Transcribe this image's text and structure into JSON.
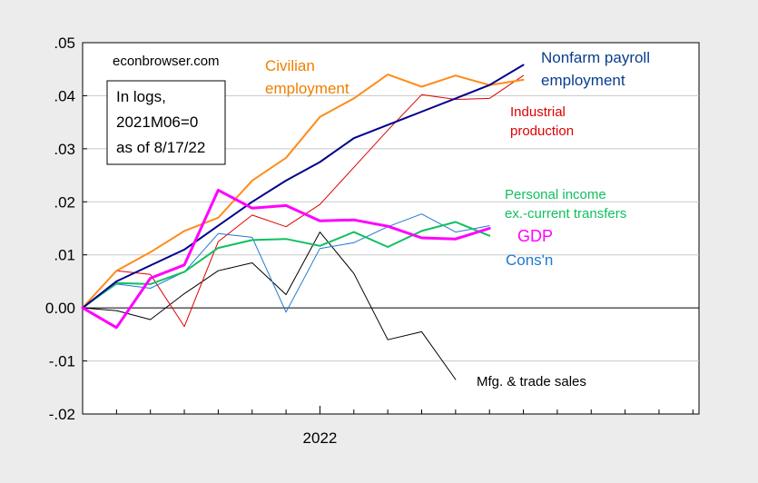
{
  "chart_data": {
    "type": "line",
    "title": "",
    "xlabel": "",
    "ylabel": "",
    "ylim": [
      -0.02,
      0.05
    ],
    "y_ticks": [
      ".05",
      ".04",
      ".03",
      ".02",
      ".01",
      "0.00",
      "-.01",
      "-.02"
    ],
    "x_tick_labels": [
      "2022"
    ],
    "x_months": [
      "2021-06",
      "2021-07",
      "2021-08",
      "2021-09",
      "2021-10",
      "2021-11",
      "2021-12",
      "2022-01",
      "2022-02",
      "2022-03",
      "2022-04",
      "2022-05",
      "2022-06",
      "2022-07",
      "2022-08",
      "2022-09",
      "2022-10",
      "2022-11",
      "2022-12"
    ],
    "grid": true,
    "annotations": {
      "source": "econbrowser.com",
      "note_lines": [
        "In logs,",
        "2021M06=0",
        "as of 8/17/22"
      ]
    },
    "series": [
      {
        "name": "Nonfarm payroll employment",
        "label_lines": [
          "Nonfarm payroll",
          "employment"
        ],
        "color": "#00008b",
        "label_color": "#0a3d8f",
        "width": 2,
        "values": [
          0.0,
          0.005,
          0.008,
          0.011,
          0.0155,
          0.02,
          0.024,
          0.0275,
          0.032,
          0.0345,
          0.037,
          0.0395,
          0.042,
          0.0458
        ]
      },
      {
        "name": "Civilian employment",
        "label_lines": [
          "Civilian",
          "employment"
        ],
        "color": "#ff8c1a",
        "label_color": "#f07f00",
        "width": 2,
        "values": [
          0.0,
          0.007,
          0.0105,
          0.0145,
          0.017,
          0.024,
          0.0283,
          0.036,
          0.0395,
          0.044,
          0.0417,
          0.0438,
          0.042,
          0.043
        ]
      },
      {
        "name": "Industrial production",
        "label_lines": [
          "Industrial",
          "production"
        ],
        "color": "#e00000",
        "label_color": "#e00000",
        "width": 1,
        "values": [
          0.0,
          0.007,
          0.0063,
          -0.0035,
          0.0125,
          0.0175,
          0.0153,
          0.0195,
          0.0265,
          0.0335,
          0.0402,
          0.0393,
          0.0395,
          0.0438
        ]
      },
      {
        "name": "Personal income ex.-current transfers",
        "label_lines": [
          "Personal income",
          "ex.-current transfers"
        ],
        "color": "#10c060",
        "label_color": "#10c060",
        "width": 2,
        "values": [
          0.0,
          0.0047,
          0.0045,
          0.0068,
          0.0113,
          0.0128,
          0.013,
          0.0117,
          0.0143,
          0.0115,
          0.0145,
          0.0162,
          0.0136
        ]
      },
      {
        "name": "Cons'n",
        "label_lines": [
          "Cons'n"
        ],
        "color": "#1f78d1",
        "label_color": "#1f78d1",
        "width": 1,
        "values": [
          0.0,
          0.0045,
          0.0037,
          0.0068,
          0.014,
          0.0133,
          -0.0008,
          0.0112,
          0.0123,
          0.0153,
          0.0177,
          0.0143,
          0.0155
        ]
      },
      {
        "name": "GDP",
        "label_lines": [
          "GDP"
        ],
        "color": "#ff00ff",
        "label_color": "#ff00ff",
        "width": 3,
        "values": [
          0.0,
          -0.0037,
          0.0056,
          0.0081,
          0.0222,
          0.0188,
          0.0193,
          0.0164,
          0.0166,
          0.0154,
          0.0132,
          0.013,
          0.015
        ]
      },
      {
        "name": "Mfg. & trade sales",
        "label_lines": [
          "Mfg. & trade sales"
        ],
        "color": "#000000",
        "label_color": "#000000",
        "width": 1,
        "values": [
          0.0,
          -0.0005,
          -0.0022,
          0.0027,
          0.007,
          0.0085,
          0.0025,
          0.0143,
          0.0065,
          -0.006,
          -0.0045,
          -0.0135
        ]
      }
    ]
  }
}
